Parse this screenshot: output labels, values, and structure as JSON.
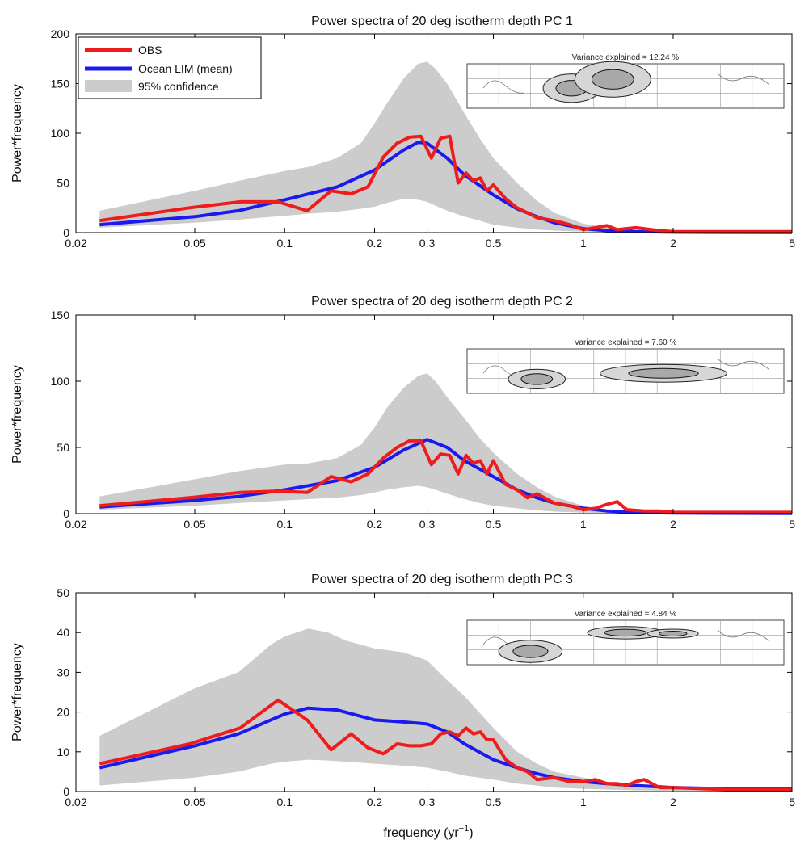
{
  "figure": {
    "xlabel_base": "frequency (yr",
    "xlabel_exp": "−1",
    "xlabel_close": ")"
  },
  "colors": {
    "obs": "#ee1c1c",
    "lim": "#1a1aee",
    "confidence": "#cccccc"
  },
  "legend": {
    "obs": "OBS",
    "lim": "Ocean LIM (mean)",
    "confidence": "95% confidence"
  },
  "chart_data": [
    {
      "type": "line",
      "title": "Power spectra of 20 deg isotherm depth PC 1",
      "ylabel": "Power*frequency",
      "xlabel": "",
      "xscale": "log",
      "xlim": [
        0.02,
        5
      ],
      "ylim": [
        0,
        200
      ],
      "xticks": [
        0.02,
        0.05,
        0.1,
        0.2,
        0.3,
        0.5,
        1,
        2,
        5
      ],
      "xtick_labels": [
        "0.02",
        "0.05",
        "0.1",
        "0.2",
        "0.3",
        "0.5",
        "1",
        "2",
        "5"
      ],
      "yticks": [
        0,
        50,
        100,
        150,
        200
      ],
      "ytick_labels": [
        "0",
        "50",
        "100",
        "150",
        "200"
      ],
      "legend_position": "top-left",
      "inset_text": "Variance explained = 12.24 %",
      "series": [
        {
          "name": "OBS",
          "x": [
            0.024,
            0.048,
            0.071,
            0.095,
            0.119,
            0.143,
            0.167,
            0.19,
            0.214,
            0.238,
            0.262,
            0.286,
            0.31,
            0.333,
            0.357,
            0.381,
            0.405,
            0.429,
            0.452,
            0.476,
            0.5,
            0.55,
            0.6,
            0.65,
            0.7,
            0.8,
            0.9,
            1.0,
            1.1,
            1.2,
            1.3,
            1.5,
            1.8,
            2.0,
            3.0,
            5.0
          ],
          "y": [
            12,
            25,
            31,
            31,
            22,
            42,
            39,
            46,
            76,
            90,
            96,
            97,
            75,
            95,
            97,
            50,
            60,
            52,
            55,
            42,
            48,
            34,
            25,
            20,
            15,
            12,
            8,
            3,
            5,
            7,
            3,
            5,
            2,
            1,
            1,
            1
          ]
        },
        {
          "name": "Ocean LIM (mean)",
          "x": [
            0.024,
            0.05,
            0.07,
            0.1,
            0.15,
            0.2,
            0.25,
            0.28,
            0.3,
            0.35,
            0.4,
            0.5,
            0.6,
            0.7,
            0.8,
            1.0,
            1.2,
            1.5,
            2.0,
            3.0,
            5.0
          ],
          "y": [
            8,
            16,
            22,
            33,
            46,
            63,
            83,
            91,
            90,
            75,
            58,
            38,
            24,
            16,
            10,
            4,
            2,
            1,
            0.5,
            0.3,
            0.2
          ]
        },
        {
          "name": "95% confidence",
          "x": [
            0.024,
            0.05,
            0.07,
            0.1,
            0.12,
            0.15,
            0.18,
            0.2,
            0.22,
            0.25,
            0.28,
            0.3,
            0.32,
            0.35,
            0.4,
            0.45,
            0.5,
            0.6,
            0.7,
            0.8,
            1.0,
            1.2,
            1.5,
            2.0,
            3.0,
            5.0
          ],
          "lower": [
            5,
            10,
            13,
            17,
            19,
            21,
            24,
            26,
            30,
            34,
            33,
            31,
            27,
            22,
            16,
            12,
            8,
            5,
            3,
            2,
            1,
            0.5,
            0.3,
            0.2,
            0.1,
            0.1
          ],
          "upper": [
            22,
            42,
            52,
            62,
            66,
            75,
            90,
            110,
            130,
            155,
            170,
            172,
            165,
            150,
            120,
            95,
            75,
            50,
            32,
            20,
            9,
            5,
            3,
            1.5,
            0.8,
            0.5
          ]
        }
      ]
    },
    {
      "type": "line",
      "title": "Power spectra of 20 deg isotherm depth PC 2",
      "ylabel": "Power*frequency",
      "xlabel": "",
      "xscale": "log",
      "xlim": [
        0.02,
        5
      ],
      "ylim": [
        0,
        150
      ],
      "xticks": [
        0.02,
        0.05,
        0.1,
        0.2,
        0.3,
        0.5,
        1,
        2,
        5
      ],
      "xtick_labels": [
        "0.02",
        "0.05",
        "0.1",
        "0.2",
        "0.3",
        "0.5",
        "1",
        "2",
        "5"
      ],
      "yticks": [
        0,
        50,
        100,
        150
      ],
      "ytick_labels": [
        "0",
        "50",
        "100",
        "150"
      ],
      "inset_text": "Variance explained =  7.60 %",
      "series": [
        {
          "name": "OBS",
          "x": [
            0.024,
            0.048,
            0.071,
            0.095,
            0.119,
            0.143,
            0.167,
            0.19,
            0.214,
            0.238,
            0.262,
            0.286,
            0.31,
            0.333,
            0.357,
            0.381,
            0.405,
            0.429,
            0.452,
            0.476,
            0.5,
            0.55,
            0.6,
            0.65,
            0.7,
            0.8,
            0.9,
            1.0,
            1.1,
            1.2,
            1.3,
            1.4,
            1.6,
            1.8,
            2.0,
            3.0,
            5.0
          ],
          "y": [
            6,
            12,
            16,
            17,
            16,
            28,
            24,
            30,
            42,
            50,
            55,
            55,
            37,
            45,
            44,
            30,
            44,
            38,
            40,
            30,
            40,
            22,
            18,
            12,
            15,
            8,
            6,
            3,
            4,
            7,
            9,
            3,
            2,
            2,
            1,
            1,
            1
          ]
        },
        {
          "name": "Ocean LIM (mean)",
          "x": [
            0.024,
            0.05,
            0.07,
            0.1,
            0.15,
            0.2,
            0.25,
            0.3,
            0.35,
            0.4,
            0.5,
            0.6,
            0.7,
            0.8,
            1.0,
            1.2,
            1.5,
            2.0,
            3.0,
            5.0
          ],
          "y": [
            5,
            10,
            13,
            18,
            25,
            35,
            48,
            56,
            50,
            40,
            28,
            18,
            12,
            8,
            4,
            2,
            1,
            0.5,
            0.3,
            0.2
          ]
        },
        {
          "name": "95% confidence",
          "x": [
            0.024,
            0.05,
            0.07,
            0.1,
            0.12,
            0.15,
            0.18,
            0.2,
            0.22,
            0.25,
            0.28,
            0.3,
            0.32,
            0.35,
            0.4,
            0.45,
            0.5,
            0.6,
            0.7,
            0.8,
            1.0,
            1.2,
            1.5,
            2.0,
            3.0,
            5.0
          ],
          "lower": [
            3,
            6,
            8,
            10,
            11,
            12,
            14,
            16,
            18,
            20,
            21,
            20,
            18,
            15,
            11,
            8,
            6,
            4,
            2.5,
            1.5,
            0.8,
            0.4,
            0.2,
            0.1,
            0.1,
            0.1
          ],
          "upper": [
            13,
            26,
            32,
            37,
            38,
            42,
            52,
            65,
            80,
            95,
            104,
            106,
            100,
            88,
            72,
            57,
            46,
            30,
            20,
            13,
            6,
            3,
            1.8,
            1,
            0.5,
            0.3
          ]
        }
      ]
    },
    {
      "type": "line",
      "title": "Power spectra of 20 deg isotherm depth PC 3",
      "ylabel": "Power*frequency",
      "xlabel": "",
      "xscale": "log",
      "xlim": [
        0.02,
        5
      ],
      "ylim": [
        0,
        50
      ],
      "xticks": [
        0.02,
        0.05,
        0.1,
        0.2,
        0.3,
        0.5,
        1,
        2,
        5
      ],
      "xtick_labels": [
        "0.02",
        "0.05",
        "0.1",
        "0.2",
        "0.3",
        "0.5",
        "1",
        "2",
        "5"
      ],
      "yticks": [
        0,
        10,
        20,
        30,
        40,
        50
      ],
      "ytick_labels": [
        "0",
        "10",
        "20",
        "30",
        "40",
        "50"
      ],
      "inset_text": "Variance explained =  4.84 %",
      "series": [
        {
          "name": "OBS",
          "x": [
            0.024,
            0.048,
            0.071,
            0.095,
            0.119,
            0.143,
            0.167,
            0.19,
            0.214,
            0.238,
            0.262,
            0.286,
            0.31,
            0.333,
            0.357,
            0.381,
            0.405,
            0.429,
            0.452,
            0.476,
            0.5,
            0.55,
            0.6,
            0.65,
            0.7,
            0.8,
            0.9,
            1.0,
            1.1,
            1.2,
            1.3,
            1.4,
            1.5,
            1.6,
            1.8,
            2.0,
            3.0,
            5.0
          ],
          "y": [
            7,
            12,
            16,
            23,
            18,
            10.5,
            14.5,
            11,
            9.5,
            12,
            11.5,
            11.5,
            12,
            14.5,
            15,
            14,
            16,
            14.5,
            15,
            13,
            13,
            8,
            6,
            5,
            3,
            3.5,
            2.5,
            2.5,
            3,
            2,
            2,
            1.5,
            2.5,
            3,
            1,
            1,
            0.5,
            0.5
          ]
        },
        {
          "name": "Ocean LIM (mean)",
          "x": [
            0.024,
            0.05,
            0.07,
            0.1,
            0.12,
            0.15,
            0.2,
            0.25,
            0.3,
            0.35,
            0.4,
            0.5,
            0.6,
            0.7,
            0.8,
            1.0,
            1.2,
            1.5,
            2.0,
            3.0,
            5.0
          ],
          "y": [
            6,
            11.5,
            14.5,
            19.5,
            21,
            20.5,
            18,
            17.5,
            17,
            15,
            12,
            8,
            6,
            4.5,
            3.5,
            2.5,
            2,
            1.5,
            1,
            0.7,
            0.6
          ]
        },
        {
          "name": "95% confidence",
          "x": [
            0.024,
            0.05,
            0.07,
            0.09,
            0.1,
            0.12,
            0.14,
            0.16,
            0.2,
            0.25,
            0.3,
            0.35,
            0.4,
            0.5,
            0.6,
            0.7,
            0.8,
            1.0,
            1.2,
            1.5,
            2.0,
            3.0,
            5.0
          ],
          "lower": [
            1.5,
            3.5,
            5,
            7,
            7.5,
            8,
            7.8,
            7.5,
            7,
            6.5,
            6,
            5,
            4,
            3,
            2,
            1.5,
            1,
            0.7,
            0.5,
            0.3,
            0.2,
            0.1,
            0.1
          ],
          "upper": [
            14,
            26,
            30,
            37,
            39,
            41,
            40,
            38,
            36,
            35,
            33,
            28,
            24,
            16,
            10,
            7,
            5,
            3.5,
            2.5,
            1.5,
            1,
            0.7,
            0.5
          ]
        }
      ]
    }
  ]
}
